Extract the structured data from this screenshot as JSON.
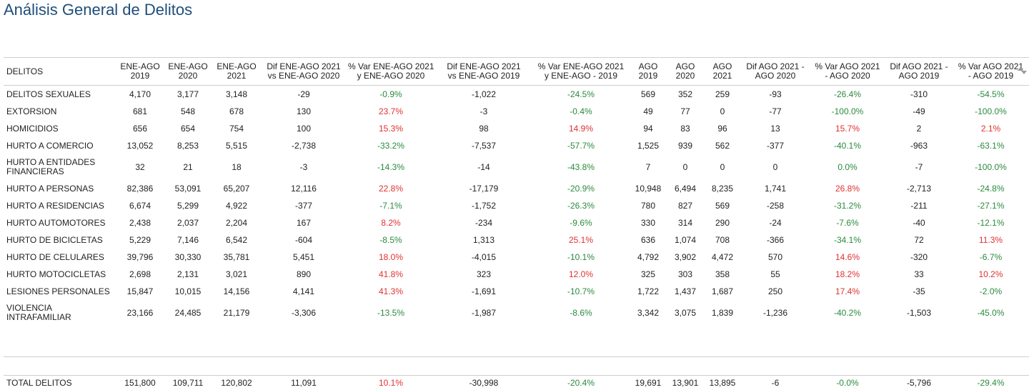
{
  "title": "Análisis General de Delitos",
  "columns": [
    [
      "DELITOS"
    ],
    [
      "ENE-AGO",
      "2019"
    ],
    [
      "ENE-AGO",
      "2020"
    ],
    [
      "ENE-AGO",
      "2021"
    ],
    [
      "Dif ENE-AGO 2021",
      "vs ENE-AGO 2020"
    ],
    [
      "% Var ENE-AGO 2021",
      "y ENE-AGO 2020"
    ],
    [
      "Dif ENE-AGO 2021",
      "vs ENE-AGO 2019"
    ],
    [
      "% Var ENE-AGO 2021",
      "y ENE-AGO - 2019"
    ],
    [
      "AGO",
      "2019"
    ],
    [
      "AGO",
      "2020"
    ],
    [
      "AGO",
      "2021"
    ],
    [
      "Dif AGO 2021 -",
      "AGO 2020"
    ],
    [
      "% Var AGO 2021",
      "- AGO 2020"
    ],
    [
      "Dif AGO 2021 -",
      "AGO 2019"
    ],
    [
      "% Var AGO 2021",
      "- AGO 2019"
    ]
  ],
  "rows": [
    [
      "DELITOS SEXUALES",
      "4,170",
      "3,177",
      "3,148",
      "-29",
      "-0.9%",
      "-1,022",
      "-24.5%",
      "569",
      "352",
      "259",
      "-93",
      "-26.4%",
      "-310",
      "-54.5%"
    ],
    [
      "EXTORSION",
      "681",
      "548",
      "678",
      "130",
      "23.7%",
      "-3",
      "-0.4%",
      "49",
      "77",
      "0",
      "-77",
      "-100.0%",
      "-49",
      "-100.0%"
    ],
    [
      "HOMICIDIOS",
      "656",
      "654",
      "754",
      "100",
      "15.3%",
      "98",
      "14.9%",
      "94",
      "83",
      "96",
      "13",
      "15.7%",
      "2",
      "2.1%"
    ],
    [
      "HURTO A COMERCIO",
      "13,052",
      "8,253",
      "5,515",
      "-2,738",
      "-33.2%",
      "-7,537",
      "-57.7%",
      "1,525",
      "939",
      "562",
      "-377",
      "-40.1%",
      "-963",
      "-63.1%"
    ],
    [
      "HURTO A ENTIDADES FINANCIERAS",
      "32",
      "21",
      "18",
      "-3",
      "-14.3%",
      "-14",
      "-43.8%",
      "7",
      "0",
      "0",
      "0",
      "0.0%",
      "-7",
      "-100.0%"
    ],
    [
      "HURTO A PERSONAS",
      "82,386",
      "53,091",
      "65,207",
      "12,116",
      "22.8%",
      "-17,179",
      "-20.9%",
      "10,948",
      "6,494",
      "8,235",
      "1,741",
      "26.8%",
      "-2,713",
      "-24.8%"
    ],
    [
      "HURTO A RESIDENCIAS",
      "6,674",
      "5,299",
      "4,922",
      "-377",
      "-7.1%",
      "-1,752",
      "-26.3%",
      "780",
      "827",
      "569",
      "-258",
      "-31.2%",
      "-211",
      "-27.1%"
    ],
    [
      "HURTO AUTOMOTORES",
      "2,438",
      "2,037",
      "2,204",
      "167",
      "8.2%",
      "-234",
      "-9.6%",
      "330",
      "314",
      "290",
      "-24",
      "-7.6%",
      "-40",
      "-12.1%"
    ],
    [
      "HURTO DE BICICLETAS",
      "5,229",
      "7,146",
      "6,542",
      "-604",
      "-8.5%",
      "1,313",
      "25.1%",
      "636",
      "1,074",
      "708",
      "-366",
      "-34.1%",
      "72",
      "11.3%"
    ],
    [
      "HURTO DE CELULARES",
      "39,796",
      "30,330",
      "35,781",
      "5,451",
      "18.0%",
      "-4,015",
      "-10.1%",
      "4,792",
      "3,902",
      "4,472",
      "570",
      "14.6%",
      "-320",
      "-6.7%"
    ],
    [
      "HURTO MOTOCICLETAS",
      "2,698",
      "2,131",
      "3,021",
      "890",
      "41.8%",
      "323",
      "12.0%",
      "325",
      "303",
      "358",
      "55",
      "18.2%",
      "33",
      "10.2%"
    ],
    [
      "LESIONES PERSONALES",
      "15,847",
      "10,015",
      "14,156",
      "4,141",
      "41.3%",
      "-1,691",
      "-10.7%",
      "1,722",
      "1,437",
      "1,687",
      "250",
      "17.4%",
      "-35",
      "-2.0%"
    ],
    [
      "VIOLENCIA INTRAFAMILIAR",
      "23,166",
      "24,485",
      "21,179",
      "-3,306",
      "-13.5%",
      "-1,987",
      "-8.6%",
      "3,342",
      "3,075",
      "1,839",
      "-1,236",
      "-40.2%",
      "-1,503",
      "-45.0%"
    ]
  ],
  "total": [
    "TOTAL DELITOS",
    "151,800",
    "109,711",
    "120,802",
    "11,091",
    "10.1%",
    "-30,998",
    "-20.4%",
    "19,691",
    "13,901",
    "13,895",
    "-6",
    "-0.0%",
    "-5,796",
    "-29.4%"
  ],
  "colors": {
    "positive": "#e03131",
    "negative": "#2b8a3e",
    "title": "#1f4e79"
  },
  "icons": {
    "sort": "sort-arrows-icon"
  }
}
